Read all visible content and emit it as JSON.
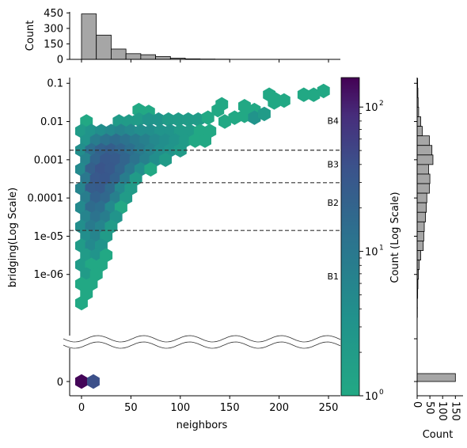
{
  "chart_data": {
    "type": "hexbin",
    "main": {
      "xlabel": "neighbors",
      "ylabel": "bridging(Log Scale)",
      "xlim": [
        -12,
        262
      ],
      "x_ticks": [
        0,
        50,
        100,
        150,
        200,
        250
      ],
      "x_tick_labels": [
        "0",
        "50",
        "100",
        "150",
        "200",
        "250"
      ],
      "y_scale": "log",
      "ylim_log10": [
        -7.6,
        -0.85
      ],
      "y_ticks_log10": [
        -1,
        -2,
        -3,
        -4,
        -5,
        -6
      ],
      "y_tick_labels": [
        "0.1",
        "0.01",
        "0.001",
        "0.0001",
        "1e-05",
        "1e-06"
      ],
      "zero_panel_tick_label": "0",
      "axis_break": true,
      "thresholds_log10": [
        -2.75,
        -3.6,
        -4.85
      ],
      "band_labels": [
        {
          "text": "B4",
          "y_log10": -1.0
        },
        {
          "text": "B3",
          "y_log10": -3.2
        },
        {
          "text": "B2",
          "y_log10": -4.2
        },
        {
          "text": "B1",
          "y_log10": -6.0
        }
      ],
      "band_labels_y_log10_v2": [
        -1.98,
        -3.12,
        -4.12,
        -6.05
      ],
      "hexbins": [
        {
          "x": 58,
          "y": -1.7,
          "c": 1
        },
        {
          "x": 68,
          "y": -1.75,
          "c": 1
        },
        {
          "x": 38,
          "y": -2.0,
          "c": 2
        },
        {
          "x": 48,
          "y": -2.0,
          "c": 2
        },
        {
          "x": 58,
          "y": -1.95,
          "c": 2
        },
        {
          "x": 68,
          "y": -1.95,
          "c": 3
        },
        {
          "x": 78,
          "y": -1.95,
          "c": 3
        },
        {
          "x": 88,
          "y": -1.95,
          "c": 2
        },
        {
          "x": 98,
          "y": -1.95,
          "c": 2
        },
        {
          "x": 108,
          "y": -1.95,
          "c": 2
        },
        {
          "x": 118,
          "y": -1.95,
          "c": 2
        },
        {
          "x": 128,
          "y": -1.9,
          "c": 1
        },
        {
          "x": 138,
          "y": -1.7,
          "c": 1
        },
        {
          "x": 5,
          "y": -2.0,
          "c": 1
        },
        {
          "x": 0,
          "y": -2.25,
          "c": 2
        },
        {
          "x": 10,
          "y": -2.25,
          "c": 3
        },
        {
          "x": 20,
          "y": -2.25,
          "c": 4
        },
        {
          "x": 30,
          "y": -2.25,
          "c": 5
        },
        {
          "x": 40,
          "y": -2.25,
          "c": 6
        },
        {
          "x": 50,
          "y": -2.25,
          "c": 5
        },
        {
          "x": 60,
          "y": -2.25,
          "c": 4
        },
        {
          "x": 70,
          "y": -2.25,
          "c": 4
        },
        {
          "x": 80,
          "y": -2.25,
          "c": 3
        },
        {
          "x": 90,
          "y": -2.25,
          "c": 3
        },
        {
          "x": 100,
          "y": -2.25,
          "c": 2
        },
        {
          "x": 110,
          "y": -2.25,
          "c": 2
        },
        {
          "x": 120,
          "y": -2.25,
          "c": 1
        },
        {
          "x": 130,
          "y": -2.25,
          "c": 1
        },
        {
          "x": 5,
          "y": -2.5,
          "c": 3
        },
        {
          "x": 15,
          "y": -2.5,
          "c": 8
        },
        {
          "x": 25,
          "y": -2.5,
          "c": 12
        },
        {
          "x": 35,
          "y": -2.5,
          "c": 15
        },
        {
          "x": 45,
          "y": -2.5,
          "c": 12
        },
        {
          "x": 55,
          "y": -2.5,
          "c": 9
        },
        {
          "x": 65,
          "y": -2.5,
          "c": 7
        },
        {
          "x": 75,
          "y": -2.5,
          "c": 5
        },
        {
          "x": 85,
          "y": -2.5,
          "c": 4
        },
        {
          "x": 95,
          "y": -2.5,
          "c": 3
        },
        {
          "x": 105,
          "y": -2.5,
          "c": 2
        },
        {
          "x": 115,
          "y": -2.5,
          "c": 1
        },
        {
          "x": 125,
          "y": -2.5,
          "c": 1
        },
        {
          "x": 0,
          "y": -2.75,
          "c": 4
        },
        {
          "x": 10,
          "y": -2.75,
          "c": 14
        },
        {
          "x": 20,
          "y": -2.75,
          "c": 22
        },
        {
          "x": 30,
          "y": -2.75,
          "c": 25
        },
        {
          "x": 40,
          "y": -2.75,
          "c": 20
        },
        {
          "x": 50,
          "y": -2.75,
          "c": 14
        },
        {
          "x": 60,
          "y": -2.75,
          "c": 9
        },
        {
          "x": 70,
          "y": -2.75,
          "c": 6
        },
        {
          "x": 80,
          "y": -2.75,
          "c": 4
        },
        {
          "x": 90,
          "y": -2.75,
          "c": 3
        },
        {
          "x": 100,
          "y": -2.75,
          "c": 2
        },
        {
          "x": 5,
          "y": -3.0,
          "c": 6
        },
        {
          "x": 15,
          "y": -3.0,
          "c": 20
        },
        {
          "x": 25,
          "y": -3.0,
          "c": 30
        },
        {
          "x": 35,
          "y": -3.0,
          "c": 28
        },
        {
          "x": 45,
          "y": -3.0,
          "c": 20
        },
        {
          "x": 55,
          "y": -3.0,
          "c": 12
        },
        {
          "x": 65,
          "y": -3.0,
          "c": 7
        },
        {
          "x": 75,
          "y": -3.0,
          "c": 4
        },
        {
          "x": 85,
          "y": -3.0,
          "c": 2
        },
        {
          "x": 0,
          "y": -3.25,
          "c": 5
        },
        {
          "x": 10,
          "y": -3.25,
          "c": 24
        },
        {
          "x": 20,
          "y": -3.25,
          "c": 35
        },
        {
          "x": 30,
          "y": -3.25,
          "c": 30
        },
        {
          "x": 40,
          "y": -3.25,
          "c": 20
        },
        {
          "x": 50,
          "y": -3.25,
          "c": 10
        },
        {
          "x": 60,
          "y": -3.25,
          "c": 4
        },
        {
          "x": 70,
          "y": -3.25,
          "c": 1
        },
        {
          "x": 5,
          "y": -3.5,
          "c": 10
        },
        {
          "x": 15,
          "y": -3.5,
          "c": 30
        },
        {
          "x": 25,
          "y": -3.5,
          "c": 32
        },
        {
          "x": 35,
          "y": -3.5,
          "c": 22
        },
        {
          "x": 45,
          "y": -3.5,
          "c": 8
        },
        {
          "x": 55,
          "y": -3.5,
          "c": 2
        },
        {
          "x": 0,
          "y": -3.75,
          "c": 6
        },
        {
          "x": 10,
          "y": -3.75,
          "c": 26
        },
        {
          "x": 20,
          "y": -3.75,
          "c": 28
        },
        {
          "x": 30,
          "y": -3.75,
          "c": 16
        },
        {
          "x": 40,
          "y": -3.75,
          "c": 5
        },
        {
          "x": 50,
          "y": -3.75,
          "c": 2
        },
        {
          "x": 5,
          "y": -4.0,
          "c": 8
        },
        {
          "x": 15,
          "y": -4.0,
          "c": 22
        },
        {
          "x": 25,
          "y": -4.0,
          "c": 18
        },
        {
          "x": 35,
          "y": -4.0,
          "c": 7
        },
        {
          "x": 45,
          "y": -4.0,
          "c": 2
        },
        {
          "x": 0,
          "y": -4.25,
          "c": 5
        },
        {
          "x": 10,
          "y": -4.25,
          "c": 16
        },
        {
          "x": 20,
          "y": -4.25,
          "c": 14
        },
        {
          "x": 30,
          "y": -4.25,
          "c": 5
        },
        {
          "x": 40,
          "y": -4.25,
          "c": 1
        },
        {
          "x": 5,
          "y": -4.5,
          "c": 6
        },
        {
          "x": 15,
          "y": -4.5,
          "c": 12
        },
        {
          "x": 25,
          "y": -4.5,
          "c": 8
        },
        {
          "x": 35,
          "y": -4.5,
          "c": 3
        },
        {
          "x": 0,
          "y": -4.75,
          "c": 4
        },
        {
          "x": 10,
          "y": -4.75,
          "c": 9
        },
        {
          "x": 20,
          "y": -4.75,
          "c": 6
        },
        {
          "x": 30,
          "y": -4.75,
          "c": 2
        },
        {
          "x": 5,
          "y": -5.0,
          "c": 4
        },
        {
          "x": 15,
          "y": -5.0,
          "c": 6
        },
        {
          "x": 25,
          "y": -5.0,
          "c": 2
        },
        {
          "x": 0,
          "y": -5.25,
          "c": 2
        },
        {
          "x": 10,
          "y": -5.25,
          "c": 5
        },
        {
          "x": 20,
          "y": -5.25,
          "c": 3
        },
        {
          "x": 5,
          "y": -5.5,
          "c": 2
        },
        {
          "x": 15,
          "y": -5.5,
          "c": 3
        },
        {
          "x": 25,
          "y": -5.5,
          "c": 1
        },
        {
          "x": 0,
          "y": -5.75,
          "c": 2
        },
        {
          "x": 10,
          "y": -5.75,
          "c": 1
        },
        {
          "x": 20,
          "y": -5.75,
          "c": 1
        },
        {
          "x": 5,
          "y": -6.0,
          "c": 2
        },
        {
          "x": 15,
          "y": -6.0,
          "c": 1
        },
        {
          "x": 0,
          "y": -6.25,
          "c": 1
        },
        {
          "x": 10,
          "y": -6.25,
          "c": 1
        },
        {
          "x": 5,
          "y": -6.5,
          "c": 1
        },
        {
          "x": 0,
          "y": -6.75,
          "c": 1
        },
        {
          "x": 145,
          "y": -2.0,
          "c": 1
        },
        {
          "x": 155,
          "y": -1.9,
          "c": 1
        },
        {
          "x": 165,
          "y": -1.85,
          "c": 1
        },
        {
          "x": 175,
          "y": -1.7,
          "c": 1
        },
        {
          "x": 195,
          "y": -1.5,
          "c": 1
        },
        {
          "x": 175,
          "y": -1.9,
          "c": 3
        },
        {
          "x": 185,
          "y": -1.8,
          "c": 2
        },
        {
          "x": 165,
          "y": -1.6,
          "c": 1
        },
        {
          "x": 225,
          "y": -1.3,
          "c": 1
        },
        {
          "x": 235,
          "y": -1.3,
          "c": 1
        },
        {
          "x": 245,
          "y": -1.2,
          "c": 1
        },
        {
          "x": 190,
          "y": -1.3,
          "c": 1
        },
        {
          "x": 195,
          "y": -1.4,
          "c": 1
        },
        {
          "x": 205,
          "y": -1.45,
          "c": 1
        },
        {
          "x": 142,
          "y": -1.55,
          "c": 1
        }
      ],
      "zero_hexbins": [
        {
          "x": 0,
          "c": 150
        },
        {
          "x": 12,
          "c": 40
        }
      ]
    },
    "top_histogram": {
      "ylabel": "Count",
      "ylim": [
        0,
        460
      ],
      "y_ticks": [
        0,
        150,
        300,
        450
      ],
      "bin_edges": [
        0,
        15,
        30,
        45,
        60,
        75,
        90,
        105,
        120,
        135,
        150
      ],
      "counts": [
        440,
        235,
        100,
        55,
        45,
        28,
        12,
        5,
        3,
        2
      ]
    },
    "right_histogram": {
      "xlabel": "Count",
      "xlim": [
        0,
        180
      ],
      "x_ticks": [
        0,
        50,
        100,
        150
      ],
      "bins_log10": [
        {
          "y": -1.0,
          "c": 2
        },
        {
          "y": -1.25,
          "c": 3
        },
        {
          "y": -1.5,
          "c": 4
        },
        {
          "y": -1.75,
          "c": 6
        },
        {
          "y": -2.0,
          "c": 14
        },
        {
          "y": -2.25,
          "c": 20
        },
        {
          "y": -2.5,
          "c": 48
        },
        {
          "y": -2.75,
          "c": 58
        },
        {
          "y": -3.0,
          "c": 62
        },
        {
          "y": -3.25,
          "c": 45
        },
        {
          "y": -3.5,
          "c": 50
        },
        {
          "y": -3.75,
          "c": 48
        },
        {
          "y": -4.0,
          "c": 38
        },
        {
          "y": -4.25,
          "c": 36
        },
        {
          "y": -4.5,
          "c": 33
        },
        {
          "y": -4.75,
          "c": 28
        },
        {
          "y": -5.0,
          "c": 26
        },
        {
          "y": -5.25,
          "c": 24
        },
        {
          "y": -5.5,
          "c": 14
        },
        {
          "y": -5.75,
          "c": 8
        },
        {
          "y": -6.0,
          "c": 5
        },
        {
          "y": -6.25,
          "c": 3
        },
        {
          "y": -6.5,
          "c": 2
        },
        {
          "y": -6.75,
          "c": 1
        },
        {
          "y": -7.0,
          "c": 1
        }
      ],
      "zero_count": 150
    },
    "colorbar": {
      "label": "Count (Log Scale)",
      "scale": "log",
      "range": [
        1,
        160
      ],
      "ticks": [
        1,
        10,
        100
      ],
      "tick_labels": [
        "10",
        "10",
        "10"
      ],
      "tick_exponents": [
        "0",
        "1",
        "2"
      ],
      "colormap": "viridis_r (truncated)"
    },
    "colors": {
      "hist_fill": "#a6a6a6",
      "threshold_line": "#333333"
    }
  }
}
